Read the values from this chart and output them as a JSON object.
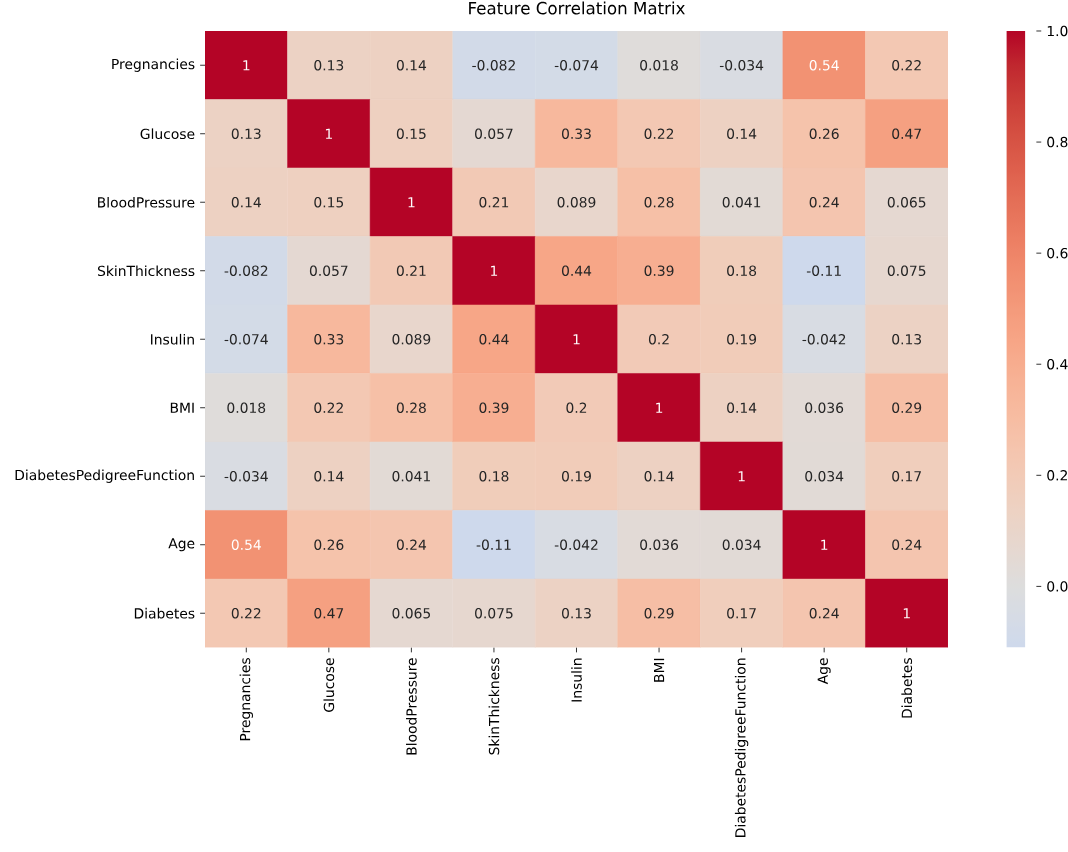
{
  "chart_data": {
    "type": "heatmap",
    "title": "Feature Correlation Matrix",
    "categories": [
      "Pregnancies",
      "Glucose",
      "BloodPressure",
      "SkinThickness",
      "Insulin",
      "BMI",
      "DiabetesPedigreeFunction",
      "Age",
      "Diabetes"
    ],
    "y_categories": [
      "Pregnancies",
      "Glucose",
      "BloodPressure",
      "SkinThickness",
      "Insulin",
      "BMI",
      "DiabetesPedigreeFunction",
      "Age",
      "Diabetes"
    ],
    "cells": [
      [
        1,
        0.13,
        0.14,
        -0.082,
        -0.074,
        0.018,
        -0.034,
        0.54,
        0.22
      ],
      [
        0.13,
        1,
        0.15,
        0.057,
        0.33,
        0.22,
        0.14,
        0.26,
        0.47
      ],
      [
        0.14,
        0.15,
        1,
        0.21,
        0.089,
        0.28,
        0.041,
        0.24,
        0.065
      ],
      [
        -0.082,
        0.057,
        0.21,
        1,
        0.44,
        0.39,
        0.18,
        -0.11,
        0.075
      ],
      [
        -0.074,
        0.33,
        0.089,
        0.44,
        1,
        0.2,
        0.19,
        -0.042,
        0.13
      ],
      [
        0.018,
        0.22,
        0.28,
        0.39,
        0.2,
        1,
        0.14,
        0.036,
        0.29
      ],
      [
        -0.034,
        0.14,
        0.041,
        0.18,
        0.19,
        0.14,
        1,
        0.034,
        0.17
      ],
      [
        0.54,
        0.26,
        0.24,
        -0.11,
        -0.042,
        0.036,
        0.034,
        1,
        0.24
      ],
      [
        0.22,
        0.47,
        0.065,
        0.075,
        0.13,
        0.29,
        0.17,
        0.24,
        1
      ]
    ],
    "clim": [
      -0.11,
      1.0
    ],
    "cticks": [
      {
        "value": 0,
        "label": "0.0"
      },
      {
        "value": 0.2,
        "label": "0.2"
      },
      {
        "value": 0.4,
        "label": "0.4"
      },
      {
        "value": 0.6,
        "label": "0.6"
      },
      {
        "value": 0.8,
        "label": "0.8"
      },
      {
        "value": 1.0,
        "label": "1.0"
      }
    ],
    "data_labels": true
  }
}
